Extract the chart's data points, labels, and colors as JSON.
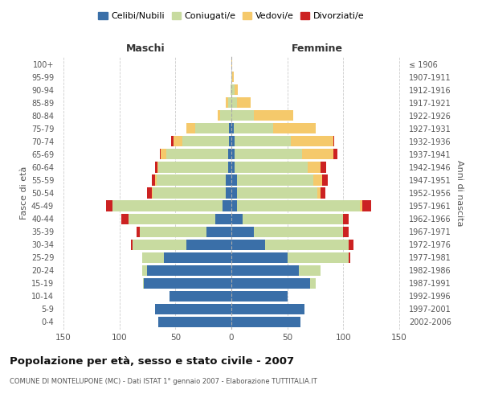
{
  "age_groups": [
    "0-4",
    "5-9",
    "10-14",
    "15-19",
    "20-24",
    "25-29",
    "30-34",
    "35-39",
    "40-44",
    "45-49",
    "50-54",
    "55-59",
    "60-64",
    "65-69",
    "70-74",
    "75-79",
    "80-84",
    "85-89",
    "90-94",
    "95-99",
    "100+"
  ],
  "birth_years": [
    "2002-2006",
    "1997-2001",
    "1992-1996",
    "1987-1991",
    "1982-1986",
    "1977-1981",
    "1972-1976",
    "1967-1971",
    "1962-1966",
    "1957-1961",
    "1952-1956",
    "1947-1951",
    "1942-1946",
    "1937-1941",
    "1932-1936",
    "1927-1931",
    "1922-1926",
    "1917-1921",
    "1912-1916",
    "1907-1911",
    "≤ 1906"
  ],
  "male": {
    "celibe": [
      65,
      68,
      55,
      78,
      75,
      60,
      40,
      22,
      14,
      8,
      5,
      5,
      3,
      3,
      2,
      2,
      0,
      0,
      0,
      0,
      0
    ],
    "coniugato": [
      0,
      0,
      0,
      1,
      5,
      20,
      48,
      60,
      78,
      98,
      65,
      62,
      62,
      55,
      42,
      30,
      10,
      3,
      1,
      0,
      0
    ],
    "vedovo": [
      0,
      0,
      0,
      0,
      0,
      0,
      0,
      0,
      0,
      0,
      1,
      1,
      1,
      5,
      8,
      8,
      2,
      2,
      0,
      0,
      0
    ],
    "divorziato": [
      0,
      0,
      0,
      0,
      0,
      0,
      2,
      3,
      6,
      6,
      4,
      3,
      2,
      1,
      2,
      0,
      0,
      0,
      0,
      0,
      0
    ]
  },
  "female": {
    "nubile": [
      62,
      65,
      50,
      70,
      60,
      50,
      30,
      20,
      10,
      5,
      5,
      5,
      3,
      3,
      3,
      2,
      0,
      0,
      0,
      0,
      0
    ],
    "coniugata": [
      0,
      0,
      0,
      5,
      20,
      55,
      75,
      80,
      90,
      110,
      72,
      68,
      65,
      60,
      50,
      35,
      20,
      5,
      3,
      1,
      0
    ],
    "vedova": [
      0,
      0,
      0,
      0,
      0,
      0,
      0,
      0,
      0,
      2,
      3,
      8,
      12,
      28,
      38,
      38,
      35,
      12,
      3,
      1,
      1
    ],
    "divorziata": [
      0,
      0,
      0,
      0,
      0,
      1,
      4,
      5,
      5,
      8,
      4,
      5,
      5,
      4,
      1,
      0,
      0,
      0,
      0,
      0,
      0
    ]
  },
  "colors": {
    "celibe": "#3a6fa8",
    "coniugato": "#c8dba0",
    "vedovo": "#f5c96b",
    "divorziato": "#cc2222"
  },
  "title": "Popolazione per età, sesso e stato civile - 2007",
  "subtitle": "COMUNE DI MONTELUPONE (MC) - Dati ISTAT 1° gennaio 2007 - Elaborazione TUTTITALIA.IT",
  "label_maschi": "Maschi",
  "label_femmine": "Femmine",
  "ylabel_left": "Fasce di età",
  "ylabel_right": "Anni di nascita",
  "xlim": 155,
  "xticks": [
    -150,
    -100,
    -50,
    0,
    50,
    100,
    150
  ],
  "xtick_labels": [
    "150",
    "100",
    "50",
    "0",
    "50",
    "100",
    "150"
  ],
  "legend_labels": [
    "Celibi/Nubili",
    "Coniugati/e",
    "Vedovi/e",
    "Divorziati/e"
  ],
  "background_color": "#ffffff",
  "grid_color": "#cccccc"
}
